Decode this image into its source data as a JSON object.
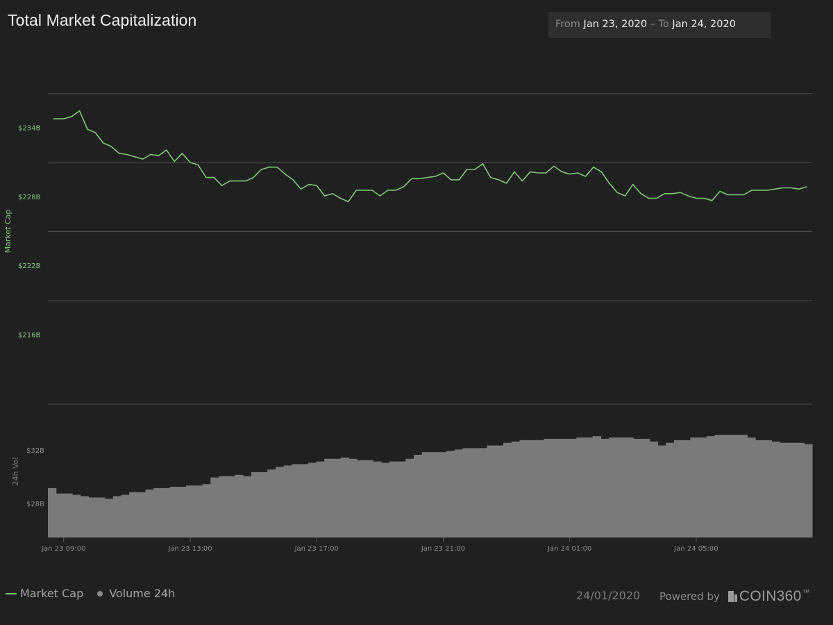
{
  "header": {
    "title": "Total Market Capitalization",
    "range_from_label": "From",
    "range_from_value": "Jan 23, 2020",
    "range_separator": "–",
    "range_to_label": "To",
    "range_to_value": "Jan 24, 2020"
  },
  "colors": {
    "background": "#1f2020",
    "market_cap_line": "#83c57a",
    "volume_fill": "#7a7a7a",
    "gridline": "#4e4f4f"
  },
  "footer": {
    "legend_market_cap": "Market Cap",
    "legend_volume": "Volume 24h",
    "date": "24/01/2020",
    "powered_by": "Powered by",
    "brand": "COIN360",
    "brand_tm": "™"
  },
  "chart_data": [
    {
      "type": "line",
      "ylabel": "Market Cap",
      "ylim": [
        210,
        240
      ],
      "yticks": [
        234,
        228,
        222,
        216
      ],
      "ytick_labels": [
        "$234B",
        "$228B",
        "$222B",
        "$216B"
      ],
      "x_range": [
        "2020-01-23 08:30",
        "2020-01-24 08:40"
      ],
      "xticks": [
        "2020-01-23 09:00",
        "2020-01-23 13:00",
        "2020-01-23 17:00",
        "2020-01-23 21:00",
        "2020-01-24 01:00",
        "2020-01-24 05:00"
      ],
      "xtick_labels": [
        "Jan 23 09:00",
        "Jan 23 13:00",
        "Jan 23 17:00",
        "Jan 23 21:00",
        "Jan 24 01:00",
        "Jan 24 05:00"
      ],
      "grid": true,
      "series": [
        {
          "name": "Market Cap",
          "x": [
            "2020-01-23 08:40",
            "2020-01-23 09:00",
            "2020-01-23 09:15",
            "2020-01-23 09:30",
            "2020-01-23 09:45",
            "2020-01-23 10:00",
            "2020-01-23 10:15",
            "2020-01-23 10:30",
            "2020-01-23 10:45",
            "2020-01-23 11:00",
            "2020-01-23 11:15",
            "2020-01-23 11:30",
            "2020-01-23 11:45",
            "2020-01-23 12:00",
            "2020-01-23 12:15",
            "2020-01-23 12:30",
            "2020-01-23 12:45",
            "2020-01-23 13:00",
            "2020-01-23 13:15",
            "2020-01-23 13:30",
            "2020-01-23 13:45",
            "2020-01-23 14:00",
            "2020-01-23 14:15",
            "2020-01-23 14:30",
            "2020-01-23 14:45",
            "2020-01-23 15:00",
            "2020-01-23 15:15",
            "2020-01-23 15:30",
            "2020-01-23 15:45",
            "2020-01-23 16:00",
            "2020-01-23 16:15",
            "2020-01-23 16:30",
            "2020-01-23 16:45",
            "2020-01-23 17:00",
            "2020-01-23 17:15",
            "2020-01-23 17:30",
            "2020-01-23 17:45",
            "2020-01-23 18:00",
            "2020-01-23 18:15",
            "2020-01-23 18:30",
            "2020-01-23 18:45",
            "2020-01-23 19:00",
            "2020-01-23 19:15",
            "2020-01-23 19:30",
            "2020-01-23 19:45",
            "2020-01-23 20:00",
            "2020-01-23 20:15",
            "2020-01-23 20:30",
            "2020-01-23 20:45",
            "2020-01-23 21:00",
            "2020-01-23 21:15",
            "2020-01-23 21:30",
            "2020-01-23 21:45",
            "2020-01-23 22:00",
            "2020-01-23 22:15",
            "2020-01-23 22:30",
            "2020-01-23 22:45",
            "2020-01-23 23:00",
            "2020-01-23 23:15",
            "2020-01-23 23:30",
            "2020-01-23 23:45",
            "2020-01-24 00:00",
            "2020-01-24 00:15",
            "2020-01-24 00:30",
            "2020-01-24 00:45",
            "2020-01-24 01:00",
            "2020-01-24 01:15",
            "2020-01-24 01:30",
            "2020-01-24 01:45",
            "2020-01-24 02:00",
            "2020-01-24 02:15",
            "2020-01-24 02:30",
            "2020-01-24 02:45",
            "2020-01-24 03:00",
            "2020-01-24 03:15",
            "2020-01-24 03:30",
            "2020-01-24 03:45",
            "2020-01-24 04:00",
            "2020-01-24 04:15",
            "2020-01-24 04:30",
            "2020-01-24 04:45",
            "2020-01-24 05:00",
            "2020-01-24 05:15",
            "2020-01-24 05:30",
            "2020-01-24 05:45",
            "2020-01-24 06:00",
            "2020-01-24 06:15",
            "2020-01-24 06:30",
            "2020-01-24 06:45",
            "2020-01-24 07:00",
            "2020-01-24 07:15",
            "2020-01-24 07:30",
            "2020-01-24 07:45",
            "2020-01-24 08:00",
            "2020-01-24 08:15",
            "2020-01-24 08:30"
          ],
          "values": [
            234.8,
            234.8,
            235.0,
            235.5,
            233.9,
            233.6,
            232.7,
            232.4,
            231.8,
            231.7,
            231.5,
            231.3,
            231.7,
            231.6,
            232.1,
            231.1,
            231.8,
            231.0,
            230.8,
            229.7,
            229.7,
            229.0,
            229.4,
            229.4,
            229.4,
            229.7,
            230.4,
            230.6,
            230.6,
            230.0,
            229.5,
            228.7,
            229.1,
            229.0,
            228.1,
            228.3,
            227.9,
            227.6,
            228.6,
            228.6,
            228.6,
            228.1,
            228.6,
            228.6,
            228.9,
            229.6,
            229.6,
            229.7,
            229.8,
            230.1,
            229.5,
            229.5,
            230.4,
            230.4,
            230.9,
            229.7,
            229.5,
            229.2,
            230.2,
            229.4,
            230.2,
            230.1,
            230.1,
            230.7,
            230.2,
            230.0,
            230.1,
            229.8,
            230.6,
            230.2,
            229.2,
            228.4,
            228.1,
            229.1,
            228.3,
            227.9,
            227.9,
            228.3,
            228.3,
            228.4,
            228.1,
            227.9,
            227.9,
            227.7,
            228.5,
            228.2,
            228.2,
            228.2,
            228.6,
            228.6,
            228.6,
            228.7,
            228.8,
            228.8,
            228.7,
            228.9
          ]
        }
      ]
    },
    {
      "type": "bar",
      "ylabel": "24h Vol",
      "ylim": [
        25.5,
        35.5
      ],
      "yticks": [
        32,
        28
      ],
      "ytick_labels": [
        "$32B",
        "$28B"
      ],
      "grid": false,
      "series": [
        {
          "name": "Volume 24h",
          "values": [
            29.2,
            28.8,
            28.8,
            28.7,
            28.6,
            28.5,
            28.5,
            28.4,
            28.6,
            28.7,
            28.9,
            28.9,
            29.1,
            29.2,
            29.2,
            29.3,
            29.3,
            29.4,
            29.4,
            29.5,
            30.0,
            30.1,
            30.1,
            30.2,
            30.1,
            30.4,
            30.4,
            30.6,
            30.8,
            30.9,
            31.0,
            31.0,
            31.1,
            31.2,
            31.4,
            31.4,
            31.5,
            31.4,
            31.3,
            31.3,
            31.2,
            31.1,
            31.2,
            31.2,
            31.4,
            31.7,
            31.9,
            31.9,
            31.9,
            32.0,
            32.1,
            32.2,
            32.2,
            32.2,
            32.4,
            32.4,
            32.6,
            32.7,
            32.8,
            32.8,
            32.8,
            32.9,
            32.9,
            32.9,
            32.9,
            33.0,
            33.0,
            33.1,
            32.9,
            33.0,
            33.0,
            33.0,
            32.9,
            32.9,
            32.7,
            32.4,
            32.6,
            32.8,
            32.8,
            33.0,
            33.0,
            33.1,
            33.2,
            33.2,
            33.2,
            33.2,
            33.0,
            32.8,
            32.8,
            32.7,
            32.6,
            32.6,
            32.6,
            32.5
          ]
        }
      ]
    }
  ]
}
